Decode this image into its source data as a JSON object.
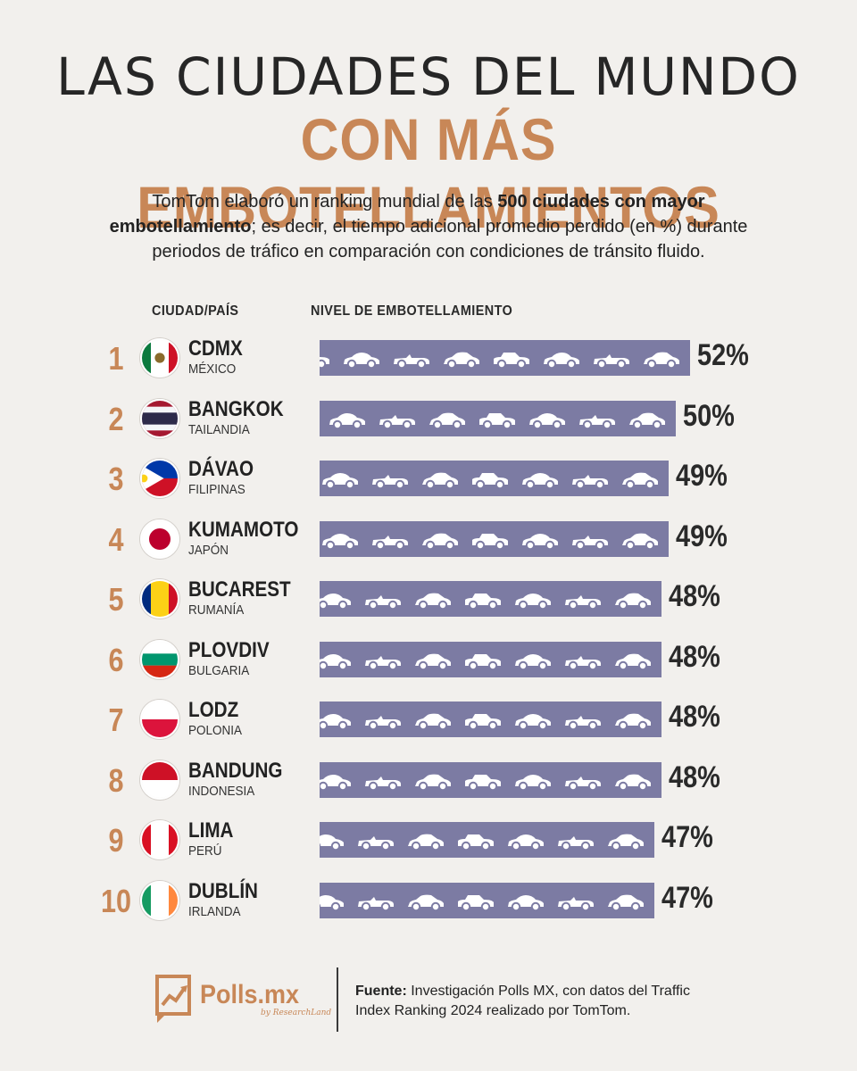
{
  "title_line1": "LAS CIUDADES DEL MUNDO",
  "title_line2": "CON MÁS EMBOTELLAMIENTOS",
  "intro": {
    "part1": "TomTom elaboró un ranking mundial de las ",
    "bold1": "500 ciudades con mayor embotellamiento",
    "part2": "; es decir, el tiempo adicional promedio perdido (en %) durante periodos de tráfico en comparación con condiciones de tránsito fluido."
  },
  "column_headers": {
    "city_country": "CIUDAD/PAÍS",
    "level": "NIVEL DE EMBOTELLAMIENTO"
  },
  "colors": {
    "accent": "#c88757",
    "bar": "#7c7ba3",
    "background": "#f2f0ed"
  },
  "chart_data": {
    "type": "bar",
    "orientation": "horizontal",
    "title": "Las ciudades del mundo con más embotellamientos",
    "unit": "%",
    "categories": [
      "CDMX",
      "BANGKOK",
      "DÁVAO",
      "KUMAMOTO",
      "BUCAREST",
      "PLOVDIV",
      "LODZ",
      "BANDUNG",
      "LIMA",
      "DUBLÍN"
    ],
    "countries": [
      "MÉXICO",
      "TAILANDIA",
      "FILIPINAS",
      "JAPÓN",
      "RUMANÍA",
      "BULGARIA",
      "POLONIA",
      "INDONESIA",
      "PERÚ",
      "IRLANDA"
    ],
    "ranks": [
      1,
      2,
      3,
      4,
      5,
      6,
      7,
      8,
      9,
      10
    ],
    "values": [
      52,
      50,
      49,
      49,
      48,
      48,
      48,
      48,
      47,
      47
    ],
    "value_labels": [
      "52%",
      "50%",
      "49%",
      "49%",
      "48%",
      "48%",
      "48%",
      "48%",
      "47%",
      "47%"
    ],
    "flags": [
      "mexico-flag-icon",
      "thailand-flag-icon",
      "philippines-flag-icon",
      "japan-flag-icon",
      "romania-flag-icon",
      "bulgaria-flag-icon",
      "poland-flag-icon",
      "indonesia-flag-icon",
      "peru-flag-icon",
      "ireland-flag-icon"
    ]
  },
  "footer": {
    "logo_text": "Polls.mx",
    "logo_sub": "by ResearchLand",
    "source_label": "Fuente:",
    "source_text": " Investigación Polls MX, con datos del Traffic Index Ranking 2024 realizado por TomTom."
  }
}
